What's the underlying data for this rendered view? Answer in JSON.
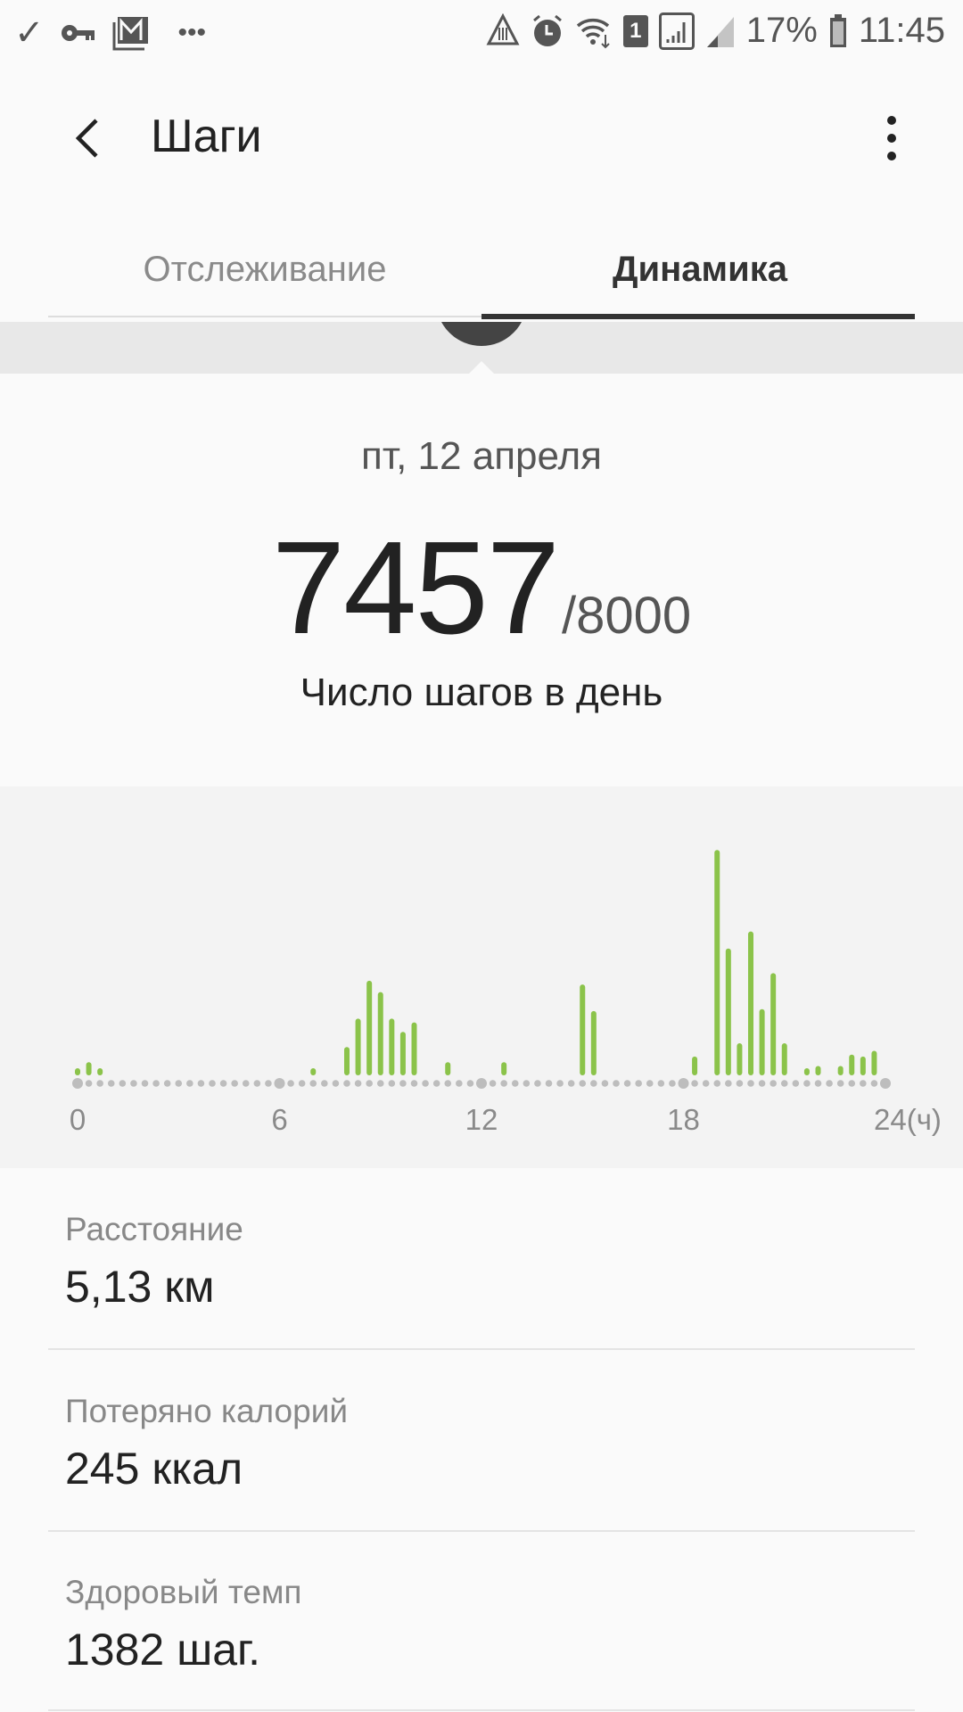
{
  "status_bar": {
    "left_icons": [
      "check-icon",
      "key-icon",
      "mail-icon",
      "more-notifications-icon"
    ],
    "right_icons": [
      "data-saver-icon",
      "alarm-icon",
      "wifi-icon",
      "sim1-icon",
      "signal-icon",
      "signal2-icon",
      "battery-icon"
    ],
    "sim_label": "1",
    "battery": "17%",
    "time": "11:45"
  },
  "toolbar": {
    "title": "Шаги",
    "back_icon": "back-arrow-icon",
    "more_icon": "more-vertical-icon"
  },
  "tabs": [
    {
      "label": "Отслеживание",
      "active": false
    },
    {
      "label": "Динамика",
      "active": true
    }
  ],
  "summary": {
    "date": "пт, 12 апреля",
    "steps": "7457",
    "goal": "/8000",
    "label": "Число шагов в день"
  },
  "chart_data": {
    "type": "bar",
    "xlabel": "",
    "x_ticks": [
      "0",
      "6",
      "12",
      "18",
      "24(ч)"
    ],
    "xlim": [
      0,
      24
    ],
    "slot_minutes": 20,
    "grid": false,
    "bar_color": "#8bc34a",
    "axis_dot_color": "#bdbdbd",
    "bars": [
      {
        "slot": 0,
        "value": 20
      },
      {
        "slot": 1,
        "value": 60
      },
      {
        "slot": 2,
        "value": 20
      },
      {
        "slot": 21,
        "value": 20
      },
      {
        "slot": 24,
        "value": 140
      },
      {
        "slot": 25,
        "value": 290
      },
      {
        "slot": 26,
        "value": 490
      },
      {
        "slot": 27,
        "value": 430
      },
      {
        "slot": 28,
        "value": 290
      },
      {
        "slot": 29,
        "value": 220
      },
      {
        "slot": 30,
        "value": 270
      },
      {
        "slot": 33,
        "value": 60
      },
      {
        "slot": 38,
        "value": 60
      },
      {
        "slot": 45,
        "value": 470
      },
      {
        "slot": 46,
        "value": 330
      },
      {
        "slot": 55,
        "value": 90
      },
      {
        "slot": 57,
        "value": 1180
      },
      {
        "slot": 58,
        "value": 660
      },
      {
        "slot": 59,
        "value": 160
      },
      {
        "slot": 60,
        "value": 750
      },
      {
        "slot": 61,
        "value": 340
      },
      {
        "slot": 62,
        "value": 530
      },
      {
        "slot": 63,
        "value": 160
      },
      {
        "slot": 65,
        "value": 20
      },
      {
        "slot": 66,
        "value": 40
      },
      {
        "slot": 68,
        "value": 40
      },
      {
        "slot": 69,
        "value": 100
      },
      {
        "slot": 70,
        "value": 90
      },
      {
        "slot": 71,
        "value": 120
      }
    ],
    "ylim": [
      0,
      1200
    ]
  },
  "stats": [
    {
      "label": "Расстояние",
      "value": "5,13 км"
    },
    {
      "label": "Потеряно калорий",
      "value": "245 ккал"
    },
    {
      "label": "Здоровый темп",
      "value": "1382 шаг."
    }
  ],
  "colors": {
    "accent": "#8bc34a",
    "tab_indicator": "#333333",
    "background": "#fafafa"
  }
}
